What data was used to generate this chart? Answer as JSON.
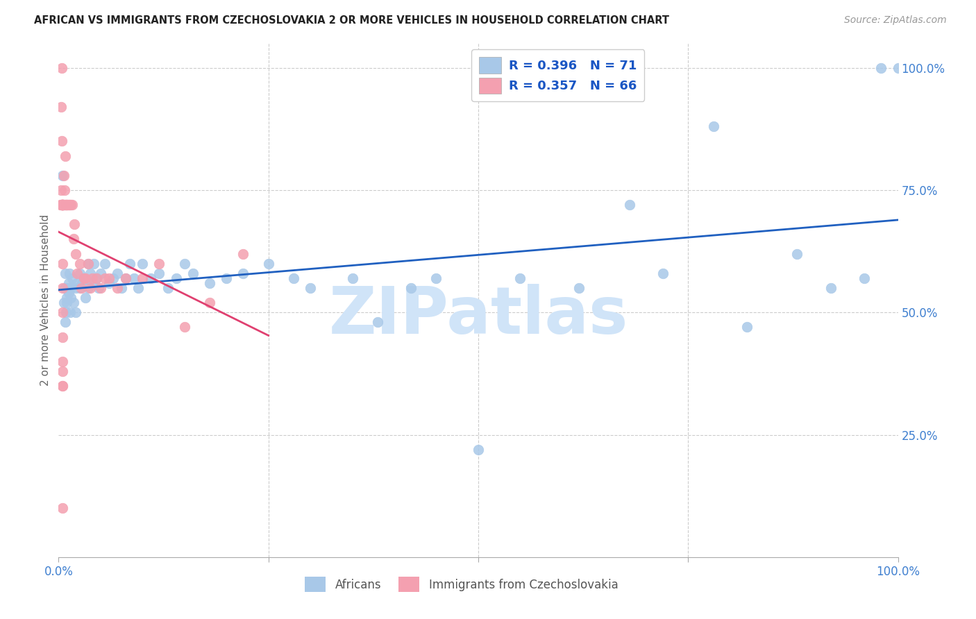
{
  "title": "AFRICAN VS IMMIGRANTS FROM CZECHOSLOVAKIA 2 OR MORE VEHICLES IN HOUSEHOLD CORRELATION CHART",
  "source": "Source: ZipAtlas.com",
  "ylabel": "2 or more Vehicles in Household",
  "blue_R": "R = 0.396",
  "blue_N": "N = 71",
  "pink_R": "R = 0.357",
  "pink_N": "N = 66",
  "blue_color": "#a8c8e8",
  "pink_color": "#f4a0b0",
  "blue_line_color": "#2060c0",
  "pink_line_color": "#e04070",
  "grid_color": "#cccccc",
  "tick_label_color": "#4080d0",
  "watermark": "ZIPatlas",
  "watermark_color": "#d0e4f8",
  "xlabel_ticks": [
    0.0,
    1.0
  ],
  "xlabel_labels": [
    "0.0%",
    "100.0%"
  ],
  "ylabel_ticks": [
    0.25,
    0.5,
    0.75,
    1.0
  ],
  "ylabel_labels": [
    "25.0%",
    "50.0%",
    "75.0%",
    "100.0%"
  ],
  "xlim": [
    0.0,
    1.0
  ],
  "ylim": [
    0.0,
    1.05
  ],
  "blue_scatter_x": [
    0.005,
    0.006,
    0.007,
    0.008,
    0.008,
    0.009,
    0.01,
    0.01,
    0.011,
    0.012,
    0.012,
    0.013,
    0.014,
    0.015,
    0.015,
    0.016,
    0.018,
    0.02,
    0.02,
    0.022,
    0.025,
    0.025,
    0.028,
    0.03,
    0.032,
    0.035,
    0.035,
    0.038,
    0.04,
    0.042,
    0.045,
    0.048,
    0.05,
    0.055,
    0.06,
    0.065,
    0.07,
    0.075,
    0.08,
    0.085,
    0.09,
    0.095,
    0.1,
    0.11,
    0.12,
    0.13,
    0.14,
    0.15,
    0.16,
    0.18,
    0.2,
    0.22,
    0.25,
    0.28,
    0.3,
    0.35,
    0.38,
    0.42,
    0.45,
    0.5,
    0.55,
    0.62,
    0.68,
    0.72,
    0.78,
    0.82,
    0.88,
    0.92,
    0.96,
    0.98,
    1.0
  ],
  "blue_scatter_y": [
    0.78,
    0.52,
    0.55,
    0.58,
    0.48,
    0.5,
    0.52,
    0.53,
    0.55,
    0.54,
    0.56,
    0.58,
    0.5,
    0.53,
    0.55,
    0.57,
    0.52,
    0.55,
    0.5,
    0.56,
    0.58,
    0.55,
    0.56,
    0.57,
    0.53,
    0.6,
    0.55,
    0.58,
    0.56,
    0.6,
    0.57,
    0.55,
    0.58,
    0.6,
    0.56,
    0.57,
    0.58,
    0.55,
    0.57,
    0.6,
    0.57,
    0.55,
    0.6,
    0.57,
    0.58,
    0.55,
    0.57,
    0.6,
    0.58,
    0.56,
    0.57,
    0.58,
    0.6,
    0.57,
    0.55,
    0.57,
    0.48,
    0.55,
    0.57,
    0.22,
    0.57,
    0.55,
    0.72,
    0.58,
    0.88,
    0.47,
    0.62,
    0.55,
    0.57,
    1.0,
    1.0
  ],
  "pink_scatter_x": [
    0.002,
    0.003,
    0.003,
    0.004,
    0.004,
    0.004,
    0.005,
    0.005,
    0.005,
    0.005,
    0.005,
    0.005,
    0.005,
    0.005,
    0.005,
    0.005,
    0.006,
    0.006,
    0.007,
    0.007,
    0.008,
    0.008,
    0.009,
    0.01,
    0.01,
    0.01,
    0.011,
    0.012,
    0.013,
    0.014,
    0.015,
    0.016,
    0.018,
    0.019,
    0.02,
    0.022,
    0.025,
    0.027,
    0.03,
    0.032,
    0.035,
    0.038,
    0.04,
    0.045,
    0.05,
    0.055,
    0.06,
    0.07,
    0.08,
    0.1,
    0.12,
    0.15,
    0.18,
    0.22,
    0.003,
    0.004,
    0.004,
    0.005,
    0.005,
    0.005,
    0.005,
    0.005,
    0.005,
    0.005,
    0.005,
    0.005
  ],
  "pink_scatter_y": [
    0.72,
    0.75,
    0.72,
    0.72,
    0.72,
    0.72,
    0.72,
    0.72,
    0.72,
    0.72,
    0.72,
    0.72,
    0.72,
    0.72,
    0.72,
    0.72,
    0.72,
    0.78,
    0.72,
    0.75,
    0.82,
    0.72,
    0.72,
    0.72,
    0.72,
    0.72,
    0.72,
    0.72,
    0.72,
    0.72,
    0.72,
    0.72,
    0.65,
    0.68,
    0.62,
    0.58,
    0.6,
    0.55,
    0.57,
    0.57,
    0.6,
    0.55,
    0.57,
    0.57,
    0.55,
    0.57,
    0.57,
    0.55,
    0.57,
    0.57,
    0.6,
    0.47,
    0.52,
    0.62,
    0.92,
    1.0,
    0.85,
    0.6,
    0.55,
    0.5,
    0.45,
    0.4,
    0.35,
    0.35,
    0.1,
    0.38
  ]
}
